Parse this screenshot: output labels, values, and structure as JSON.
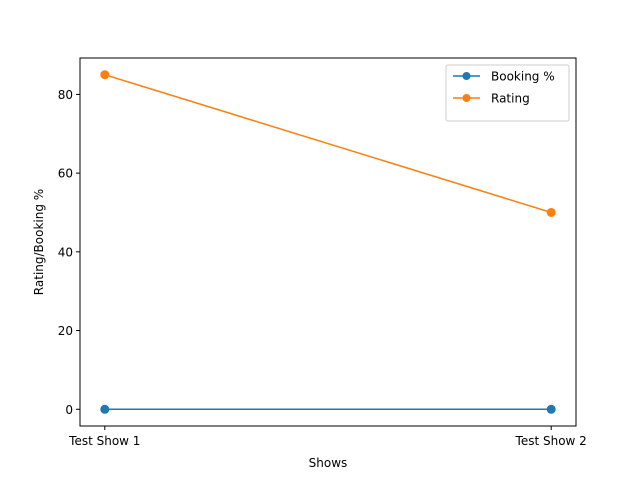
{
  "chart_data": {
    "type": "line",
    "categories": [
      "Test Show 1",
      "Test Show 2"
    ],
    "series": [
      {
        "name": "Booking %",
        "values": [
          0,
          0
        ],
        "color": "#1f77b4",
        "marker": "circle"
      },
      {
        "name": "Rating",
        "values": [
          85,
          50
        ],
        "color": "#ff7f0e",
        "marker": "circle"
      }
    ],
    "title": "",
    "xlabel": "Shows",
    "ylabel": "Rating/Booking %",
    "ylim": [
      -4.25,
      89.25
    ],
    "yticks": [
      0,
      20,
      40,
      60,
      80
    ],
    "grid": false,
    "legend_position": "upper right"
  }
}
